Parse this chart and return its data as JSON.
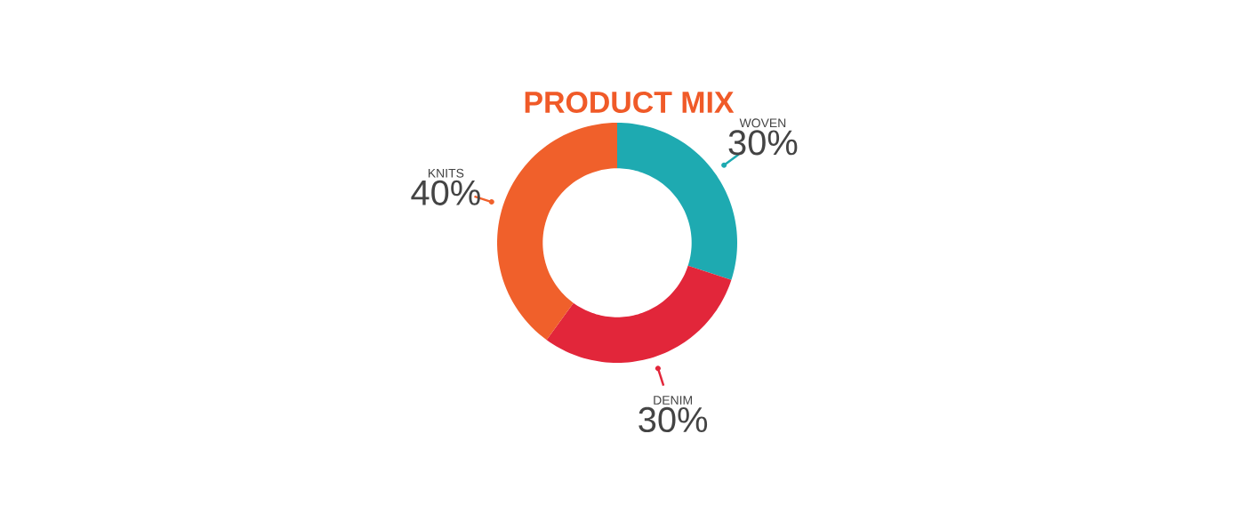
{
  "chart_data": {
    "type": "donut",
    "title": "PRODUCT MIX",
    "categories": [
      "WOVEN",
      "DENIM",
      "KNITS"
    ],
    "values": [
      30,
      30,
      40
    ],
    "value_labels": [
      "30%",
      "30%",
      "40%"
    ],
    "colors": [
      "#1eaab1",
      "#e2263a",
      "#f0602b"
    ]
  }
}
